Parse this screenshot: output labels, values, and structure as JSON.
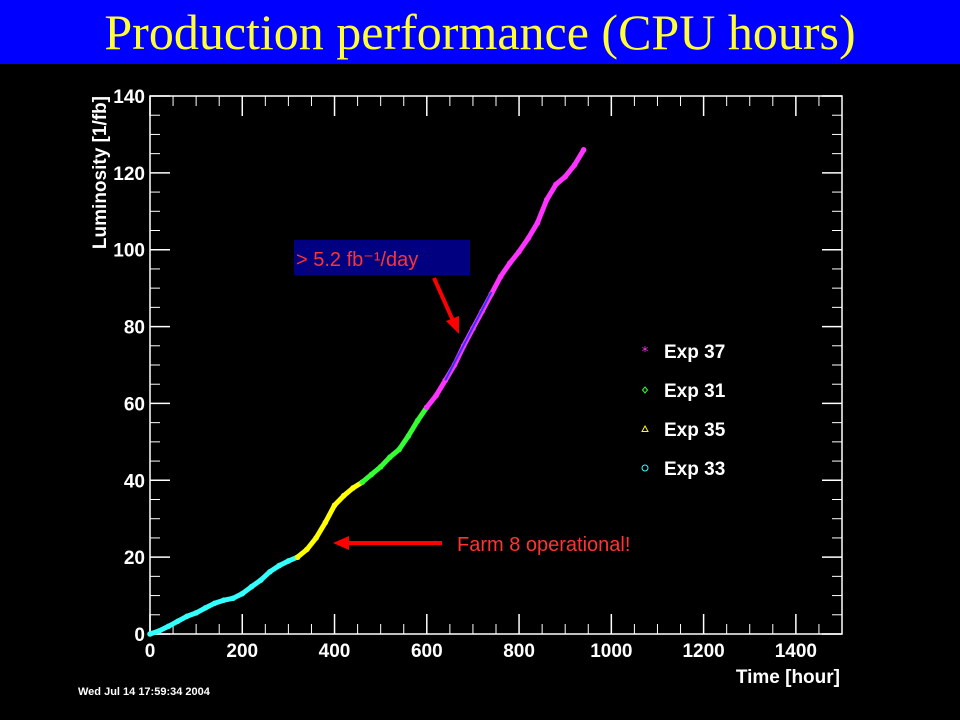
{
  "page": {
    "title": "Production performance (CPU hours)",
    "timestamp": "Wed Jul 14 17:59:34 2004"
  },
  "colors": {
    "background": "#000000",
    "title_bar": "#0000ff",
    "title_text": "#ffff33",
    "axis": "#ffffff",
    "annotation_arrow": "#ff0000",
    "rate_label_bg": "#000080",
    "fit_line": "#3333ff"
  },
  "chart_data": {
    "type": "scatter",
    "title": "",
    "xlabel": "Time [hour]",
    "ylabel": "Luminosity [1/fb]",
    "xlim": [
      0,
      1500
    ],
    "ylim": [
      0,
      140
    ],
    "xticks": [
      0,
      200,
      400,
      600,
      800,
      1000,
      1200,
      1400
    ],
    "yticks": [
      0,
      20,
      40,
      60,
      80,
      100,
      120,
      140
    ],
    "grid": false,
    "legend_position": "right",
    "series": [
      {
        "name": "Exp 33",
        "color": "#33ffff",
        "marker": "circle",
        "x": [
          0,
          20,
          40,
          60,
          80,
          100,
          120,
          140,
          160,
          180,
          200,
          220,
          240,
          260,
          280,
          300,
          320
        ],
        "y": [
          0,
          0.8,
          2,
          3.3,
          4.6,
          5.5,
          6.8,
          8,
          8.8,
          9.3,
          10.5,
          12.3,
          14,
          16.2,
          17.8,
          19,
          20
        ]
      },
      {
        "name": "Exp 35",
        "color": "#ffff00",
        "marker": "triangle",
        "x": [
          320,
          340,
          360,
          380,
          400,
          420,
          440,
          460
        ],
        "y": [
          20,
          22,
          25,
          29,
          33.5,
          36,
          38,
          39.5
        ]
      },
      {
        "name": "Exp 31",
        "color": "#33ff33",
        "marker": "diamond",
        "x": [
          460,
          480,
          500,
          520,
          540,
          560,
          580,
          600
        ],
        "y": [
          39.5,
          41.5,
          43.5,
          46,
          48,
          51.5,
          55.5,
          59
        ]
      },
      {
        "name": "Exp 37",
        "color": "#ff33ff",
        "marker": "star",
        "x": [
          600,
          620,
          640,
          660,
          680,
          700,
          720,
          740,
          760,
          780,
          800,
          820,
          840,
          860,
          880,
          900,
          920,
          940
        ],
        "y": [
          59,
          62,
          66,
          70,
          75,
          79.5,
          84,
          88.5,
          93,
          96.5,
          99.5,
          103,
          107,
          113,
          117,
          119,
          122,
          126
        ]
      }
    ],
    "fit_line": {
      "x": [
        640,
        740
      ],
      "y": [
        66,
        89
      ]
    },
    "annotations": [
      {
        "text": "> 5.2 fb⁻¹/day",
        "color": "#ff3333"
      },
      {
        "text": "Farm 8 operational!",
        "color": "#ff3333"
      }
    ]
  }
}
